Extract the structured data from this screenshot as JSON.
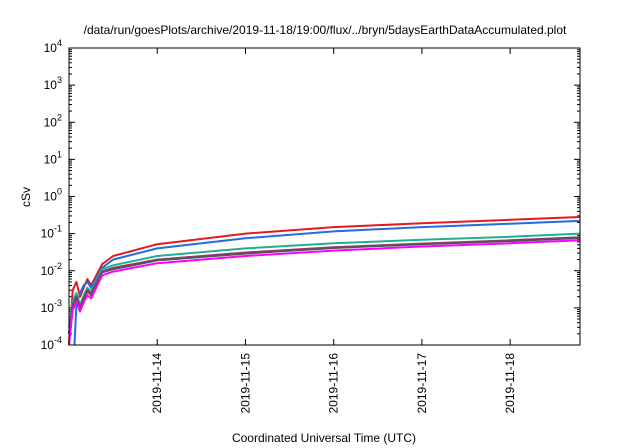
{
  "chart_data": {
    "type": "line",
    "title": "/data/run/goesPlots/archive/2019-11-18/19:00/flux/../bryn/5daysEarthDataAccumulated.plot",
    "xlabel": "Coordinated Universal Time (UTC)",
    "ylabel": "cSv",
    "y_scale": "log",
    "ylim": [
      0.0001,
      10000
    ],
    "xlim": [
      "2019-11-13T00:00",
      "2019-11-18T19:00"
    ],
    "x_ticks": [
      "2019-11-14",
      "2019-11-15",
      "2019-11-16",
      "2019-11-17",
      "2019-11-18"
    ],
    "y_ticks": [
      {
        "base": "10",
        "exp": "-4",
        "value": 0.0001
      },
      {
        "base": "10",
        "exp": "-3",
        "value": 0.001
      },
      {
        "base": "10",
        "exp": "-2",
        "value": 0.01
      },
      {
        "base": "10",
        "exp": "-1",
        "value": 0.1
      },
      {
        "base": "10",
        "exp": "0",
        "value": 1
      },
      {
        "base": "10",
        "exp": "1",
        "value": 10
      },
      {
        "base": "10",
        "exp": "2",
        "value": 100
      },
      {
        "base": "10",
        "exp": "3",
        "value": 1000
      },
      {
        "base": "10",
        "exp": "4",
        "value": 10000
      }
    ],
    "grid": false,
    "legend": "none",
    "series": [
      {
        "color": "#e41a1c",
        "x": [
          "2019-11-13T00:00",
          "2019-11-13T01:00",
          "2019-11-13T02:00",
          "2019-11-13T03:00",
          "2019-11-13T04:00",
          "2019-11-13T05:00",
          "2019-11-13T06:00",
          "2019-11-13T09:00",
          "2019-11-13T12:00",
          "2019-11-14T00:00",
          "2019-11-15T00:00",
          "2019-11-16T00:00",
          "2019-11-17T00:00",
          "2019-11-18T00:00",
          "2019-11-18T19:00"
        ],
        "values": [
          0.0001,
          0.003,
          0.005,
          0.002,
          0.0035,
          0.006,
          0.004,
          0.015,
          0.025,
          0.052,
          0.1,
          0.15,
          0.19,
          0.235,
          0.28
        ]
      },
      {
        "color": "#1f6fe0",
        "x": [
          "2019-11-13T01:30",
          "2019-11-13T02:00",
          "2019-11-13T03:00",
          "2019-11-13T04:00",
          "2019-11-13T05:00",
          "2019-11-13T06:00",
          "2019-11-13T09:00",
          "2019-11-13T12:00",
          "2019-11-14T00:00",
          "2019-11-15T00:00",
          "2019-11-16T00:00",
          "2019-11-17T00:00",
          "2019-11-18T00:00",
          "2019-11-18T19:00"
        ],
        "values": [
          0.0001,
          0.0012,
          0.0025,
          0.004,
          0.005,
          0.0035,
          0.012,
          0.02,
          0.04,
          0.075,
          0.115,
          0.15,
          0.185,
          0.22
        ]
      },
      {
        "color": "#20b090",
        "x": [
          "2019-11-13T00:00",
          "2019-11-13T01:00",
          "2019-11-13T02:00",
          "2019-11-13T03:00",
          "2019-11-13T04:00",
          "2019-11-13T05:00",
          "2019-11-13T06:00",
          "2019-11-13T09:00",
          "2019-11-13T12:00",
          "2019-11-14T00:00",
          "2019-11-15T00:00",
          "2019-11-16T00:00",
          "2019-11-17T00:00",
          "2019-11-18T00:00",
          "2019-11-18T19:00"
        ],
        "values": [
          0.0003,
          0.0015,
          0.0025,
          0.0012,
          0.0022,
          0.0035,
          0.0028,
          0.011,
          0.014,
          0.025,
          0.04,
          0.055,
          0.068,
          0.082,
          0.1
        ]
      },
      {
        "color": "#a0307a",
        "x": [
          "2019-11-13T00:00",
          "2019-11-13T01:00",
          "2019-11-13T02:00",
          "2019-11-13T03:00",
          "2019-11-13T04:00",
          "2019-11-13T05:00",
          "2019-11-13T06:00",
          "2019-11-13T09:00",
          "2019-11-13T12:00",
          "2019-11-14T00:00",
          "2019-11-15T00:00",
          "2019-11-16T00:00",
          "2019-11-17T00:00",
          "2019-11-18T00:00",
          "2019-11-18T19:00"
        ],
        "values": [
          0.0002,
          0.0012,
          0.002,
          0.001,
          0.0018,
          0.003,
          0.0024,
          0.0095,
          0.012,
          0.02,
          0.031,
          0.043,
          0.054,
          0.066,
          0.08
        ]
      },
      {
        "color": "#555555",
        "x": [
          "2019-11-13T00:00",
          "2019-11-13T01:00",
          "2019-11-13T02:00",
          "2019-11-13T03:00",
          "2019-11-13T04:00",
          "2019-11-13T05:00",
          "2019-11-13T06:00",
          "2019-11-13T09:00",
          "2019-11-13T12:00",
          "2019-11-14T00:00",
          "2019-11-15T00:00",
          "2019-11-16T00:00",
          "2019-11-17T00:00",
          "2019-11-18T00:00",
          "2019-11-18T19:00"
        ],
        "values": [
          0.0002,
          0.0011,
          0.0018,
          0.0009,
          0.0017,
          0.0028,
          0.0022,
          0.009,
          0.011,
          0.019,
          0.029,
          0.041,
          0.052,
          0.063,
          0.076
        ]
      },
      {
        "color": "#ff00ff",
        "x": [
          "2019-11-13T00:00",
          "2019-11-13T01:00",
          "2019-11-13T02:00",
          "2019-11-13T03:00",
          "2019-11-13T04:00",
          "2019-11-13T05:00",
          "2019-11-13T06:00",
          "2019-11-13T09:00",
          "2019-11-13T12:00",
          "2019-11-14T00:00",
          "2019-11-15T00:00",
          "2019-11-16T00:00",
          "2019-11-17T00:00",
          "2019-11-18T00:00",
          "2019-11-18T19:00"
        ],
        "values": [
          0.0001,
          0.0009,
          0.0015,
          0.0008,
          0.0014,
          0.0022,
          0.0018,
          0.0075,
          0.0095,
          0.016,
          0.025,
          0.035,
          0.045,
          0.055,
          0.066
        ]
      }
    ]
  }
}
